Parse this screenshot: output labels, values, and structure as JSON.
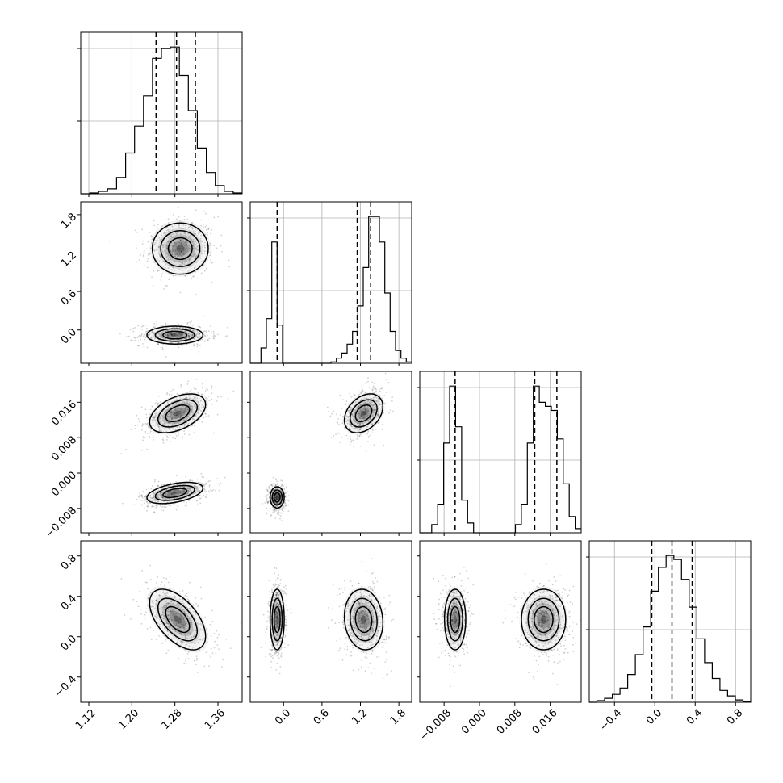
{
  "chart_data": {
    "type": "corner",
    "title": "",
    "parameters": [
      {
        "name": "",
        "range": [
          1.105,
          1.405
        ],
        "ticks": [
          "1.12",
          "1.20",
          "1.28",
          "1.36"
        ],
        "tick_values": [
          1.12,
          1.2,
          1.28,
          1.36
        ],
        "quantiles": [
          1.245,
          1.283,
          1.318
        ]
      },
      {
        "name": "",
        "range": [
          -0.52,
          2.0
        ],
        "ticks": [
          "0.0",
          "0.6",
          "1.2",
          "1.8"
        ],
        "tick_values": [
          0.0,
          0.6,
          1.2,
          1.8
        ],
        "quantiles": [
          -0.1,
          1.15,
          1.36
        ]
      },
      {
        "name": "",
        "range": [
          -0.0135,
          0.023
        ],
        "ticks": [
          "−0.008",
          "0.000",
          "0.008",
          "0.016"
        ],
        "tick_values": [
          -0.008,
          0.0,
          0.008,
          0.016
        ],
        "quantiles": [
          -0.0055,
          0.0125,
          0.0175
        ]
      },
      {
        "name": "",
        "range": [
          -0.65,
          0.95
        ],
        "ticks": [
          "−0.4",
          "0.0",
          "0.4",
          "0.8"
        ],
        "tick_values": [
          -0.4,
          0.0,
          0.4,
          0.8
        ],
        "quantiles": [
          -0.03,
          0.17,
          0.37
        ]
      }
    ],
    "histograms": [
      {
        "param": 0,
        "values": [
          0,
          1,
          3,
          6,
          20,
          50,
          83,
          120,
          166,
          178,
          180,
          145,
          102,
          56,
          26,
          10,
          3,
          1
        ]
      },
      {
        "param": 1,
        "values": [
          0,
          0,
          12,
          35,
          95,
          30,
          0,
          0,
          0,
          0,
          0,
          0,
          0,
          0,
          0,
          1,
          4,
          8,
          15,
          25,
          45,
          75,
          115,
          115,
          95,
          55,
          25,
          10,
          4,
          1
        ]
      },
      {
        "param": 2,
        "values": [
          0,
          0,
          10,
          35,
          110,
          180,
          130,
          40,
          12,
          0,
          0,
          0,
          0,
          0,
          0,
          0,
          10,
          35,
          110,
          180,
          160,
          155,
          150,
          115,
          60,
          20,
          5
        ]
      },
      {
        "param": 3,
        "values": [
          0,
          2,
          5,
          10,
          18,
          35,
          60,
          95,
          140,
          170,
          185,
          180,
          155,
          120,
          80,
          50,
          30,
          15,
          8,
          3,
          1
        ]
      }
    ],
    "pairs": [
      {
        "x": 0,
        "y": 1,
        "modes": [
          {
            "center": [
              1.29,
              1.27
            ],
            "sigma": [
              0.026,
              0.2
            ],
            "rho": 0.0
          },
          {
            "center": [
              1.28,
              -0.08
            ],
            "sigma": [
              0.026,
              0.07
            ],
            "rho": 0.0
          }
        ]
      },
      {
        "x": 0,
        "y": 2,
        "modes": [
          {
            "center": [
              1.285,
              0.0135
            ],
            "sigma": [
              0.026,
              0.0022
            ],
            "rho": 0.45
          },
          {
            "center": [
              1.28,
              -0.0045
            ],
            "sigma": [
              0.026,
              0.0012
            ],
            "rho": 0.45
          }
        ]
      },
      {
        "x": 0,
        "y": 3,
        "modes": [
          {
            "center": [
              1.285,
              0.17
            ],
            "sigma": [
              0.026,
              0.15
            ],
            "rho": -0.55
          }
        ]
      },
      {
        "x": 1,
        "y": 2,
        "modes": [
          {
            "center": [
              1.25,
              0.0135
            ],
            "sigma": [
              0.15,
              0.0022
            ],
            "rho": 0.35
          },
          {
            "center": [
              -0.1,
              -0.0055
            ],
            "sigma": [
              0.055,
              0.0012
            ],
            "rho": 0.0
          }
        ]
      },
      {
        "x": 1,
        "y": 3,
        "modes": [
          {
            "center": [
              -0.1,
              0.17
            ],
            "sigma": [
              0.055,
              0.15
            ],
            "rho": 0.0
          },
          {
            "center": [
              1.25,
              0.17
            ],
            "sigma": [
              0.15,
              0.15
            ],
            "rho": -0.1
          }
        ]
      },
      {
        "x": 2,
        "y": 3,
        "modes": [
          {
            "center": [
              -0.0055,
              0.17
            ],
            "sigma": [
              0.0012,
              0.15
            ],
            "rho": 0.0
          },
          {
            "center": [
              0.0145,
              0.17
            ],
            "sigma": [
              0.0025,
              0.15
            ],
            "rho": 0.0
          }
        ]
      }
    ],
    "grid": true,
    "colors": {
      "line": "#000000",
      "grid": "#b0b0b0",
      "density": "#404040"
    }
  }
}
